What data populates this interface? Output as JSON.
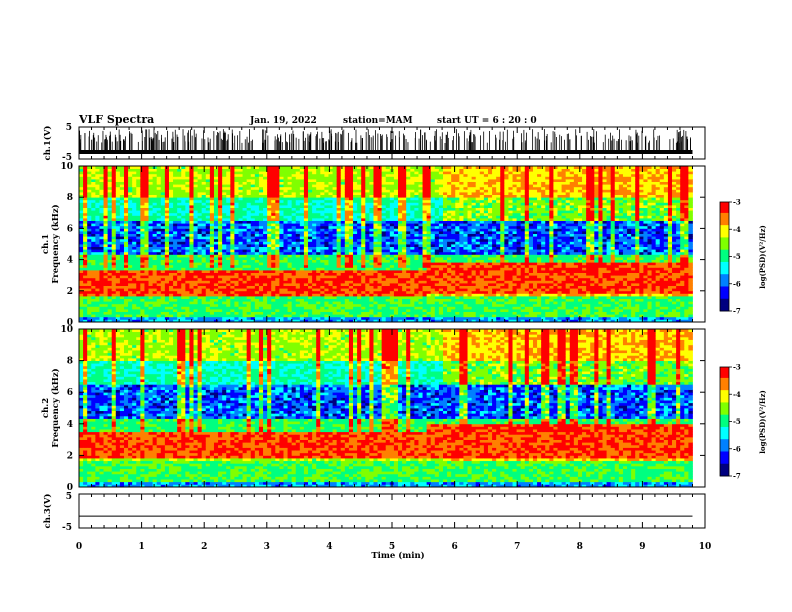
{
  "header": {
    "title": "VLF Spectra",
    "date": "Jan. 19, 2022",
    "station": "station=MAM",
    "start": "start  UT  =   6  : 20 : 0"
  },
  "chart_data": [
    {
      "type": "line",
      "panel": "ch1-waveform",
      "ylabel": "ch.1(V)",
      "yticks": [
        "5",
        "-5"
      ],
      "ylim": [
        -5,
        5
      ],
      "xlim": [
        0,
        10
      ],
      "description_series": "dense impulsive spikes (sferics) across full 0-9.8 min"
    },
    {
      "type": "heatmap",
      "panel": "ch1-spectrogram",
      "ylabel": "ch.1\nFrequency  (kHz)",
      "yticks": [
        "0",
        "2",
        "4",
        "6",
        "8",
        "10"
      ],
      "ylim": [
        0,
        10
      ],
      "xlim": [
        0,
        10
      ],
      "colorbar": {
        "label": "log(PSD)(V²/Hz)",
        "ticks": [
          "-3",
          "-4",
          "-5",
          "-6",
          "-7"
        ],
        "range": [
          -7,
          -3
        ]
      },
      "bands": [
        {
          "t": [
            0,
            5.5
          ],
          "f": [
            1.7,
            3.3
          ],
          "level": -3.2
        },
        {
          "t": [
            5.5,
            9.8
          ],
          "f": [
            1.8,
            3.9
          ],
          "level": -3.1
        }
      ]
    },
    {
      "type": "heatmap",
      "panel": "ch2-spectrogram",
      "ylabel": "ch.2\nFrequency  (kHz)",
      "yticks": [
        "0",
        "2",
        "4",
        "6",
        "8",
        "10"
      ],
      "ylim": [
        0,
        10
      ],
      "xlim": [
        0,
        10
      ],
      "colorbar": {
        "label": "log(PSD)(V²/Hz)",
        "ticks": [
          "-3",
          "-4",
          "-5",
          "-6",
          "-7"
        ],
        "range": [
          -7,
          -3
        ]
      },
      "bands": [
        {
          "t": [
            0,
            5.5
          ],
          "f": [
            1.8,
            3.5
          ],
          "level": -3.2
        },
        {
          "t": [
            5.5,
            9.8
          ],
          "f": [
            1.9,
            4.0
          ],
          "level": -3.1
        }
      ]
    },
    {
      "type": "line",
      "panel": "ch3-waveform",
      "ylabel": "ch.3(V)",
      "yticks": [
        "5",
        "-5"
      ],
      "ylim": [
        -5,
        5
      ],
      "xlim": [
        0,
        10
      ],
      "x": [
        0,
        9.8
      ],
      "y": [
        -1.5,
        -1.5
      ]
    }
  ],
  "xaxis": {
    "ticks": [
      "0",
      "1",
      "2",
      "3",
      "4",
      "5",
      "6",
      "7",
      "8",
      "9",
      "10"
    ],
    "label": "Time  (min)"
  },
  "colors": {
    "colormap": [
      "#000080",
      "#0000ff",
      "#0080ff",
      "#00ffff",
      "#00ff80",
      "#80ff00",
      "#ffff00",
      "#ff8000",
      "#ff0000",
      "#ffffff"
    ]
  }
}
